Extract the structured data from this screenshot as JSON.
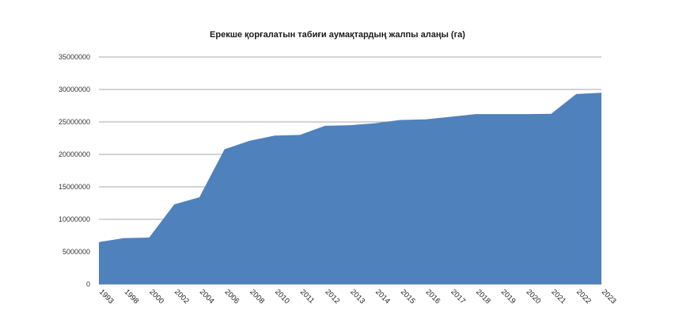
{
  "chart_data": {
    "type": "area",
    "title": "Ерекше қорғалатын табиғи аумақтардың жалпы алаңы (га)",
    "xlabel": "",
    "ylabel": "",
    "ylim": [
      0,
      35000000
    ],
    "yticks": [
      0,
      5000000,
      10000000,
      15000000,
      20000000,
      25000000,
      30000000,
      35000000
    ],
    "ytick_labels": [
      "0",
      "5000000",
      "10000000",
      "15000000",
      "20000000",
      "25000000",
      "30000000",
      "35000000"
    ],
    "grid": true,
    "legend": "none",
    "categories": [
      "1993",
      "1998",
      "2000",
      "2002",
      "2004",
      "2006",
      "2008",
      "2010",
      "2011",
      "2012",
      "2013",
      "2014",
      "2015",
      "2016",
      "2017",
      "2018",
      "2019",
      "2020",
      "2021",
      "2022",
      "2023"
    ],
    "series": [
      {
        "name": "",
        "color": "#4f81bd",
        "values": [
          6500000,
          7100000,
          7200000,
          12300000,
          13400000,
          20800000,
          22100000,
          22900000,
          23000000,
          24400000,
          24500000,
          24800000,
          25300000,
          25400000,
          25800000,
          26200000,
          26200000,
          26200000,
          26250000,
          29300000,
          29500000
        ]
      }
    ]
  }
}
